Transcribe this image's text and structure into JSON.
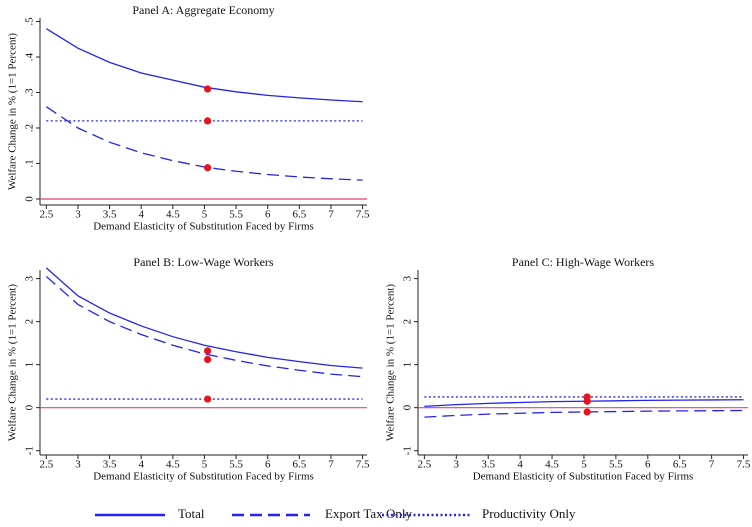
{
  "chart_data": [
    {
      "type": "line",
      "title": "Panel A: Aggregate Economy",
      "x_label": "Demand Elasticity of Substitution Faced by Firms",
      "y_label": "Welfare Change in % (1=1 Percent)",
      "x": [
        2.5,
        3,
        3.5,
        4,
        4.5,
        5,
        5.5,
        6,
        6.5,
        7,
        7.5
      ],
      "xlim": [
        2.4,
        7.57
      ],
      "xticks": [
        2.5,
        3,
        3.5,
        4,
        4.5,
        5,
        5.5,
        6,
        6.5,
        7,
        7.5
      ],
      "ylim": [
        -0.017,
        0.51
      ],
      "yticks": [
        0,
        {
          "value": 0.1,
          "label": ".1"
        },
        {
          "value": 0.2,
          "label": ".2"
        },
        {
          "value": 0.3,
          "label": ".3"
        },
        {
          "value": 0.4,
          "label": ".4"
        },
        {
          "value": 0.5,
          "label": ".5"
        }
      ],
      "hline": 0,
      "hline_color": "#e0457b",
      "highlight_x": 5.05,
      "highlight_color": "#e8141b",
      "series": [
        {
          "name": "Total",
          "color": "#2323f0",
          "line_style": "solid",
          "values": [
            0.48,
            0.425,
            0.385,
            0.355,
            0.335,
            0.315,
            0.302,
            0.292,
            0.285,
            0.279,
            0.274
          ],
          "highlight_value": 0.31
        },
        {
          "name": "Export Tax Only",
          "color": "#2323f0",
          "line_style": "dash",
          "values": [
            0.26,
            0.2,
            0.16,
            0.13,
            0.108,
            0.09,
            0.078,
            0.069,
            0.062,
            0.057,
            0.053
          ],
          "highlight_value": 0.088
        },
        {
          "name": "Productivity Only",
          "color": "#2323f0",
          "line_style": "dot",
          "values": [
            0.22,
            0.22,
            0.22,
            0.22,
            0.22,
            0.22,
            0.22,
            0.22,
            0.22,
            0.22,
            0.22
          ],
          "highlight_value": 0.22
        }
      ]
    },
    {
      "type": "line",
      "title": "Panel B: Low-Wage Workers",
      "x_label": "Demand Elasticity of Substitution Faced by Firms",
      "y_label": "Welfare Change in % (1=1 Percent)",
      "x": [
        2.5,
        3,
        3.5,
        4,
        4.5,
        5,
        5.5,
        6,
        6.5,
        7,
        7.5
      ],
      "xlim": [
        2.4,
        7.57
      ],
      "xticks": [
        2.5,
        3,
        3.5,
        4,
        4.5,
        5,
        5.5,
        6,
        6.5,
        7,
        7.5
      ],
      "ylim": [
        -1.1,
        3.2
      ],
      "yticks": [
        -1,
        0,
        1,
        2,
        3
      ],
      "hline": 0,
      "hline_color": "#e0457b",
      "highlight_x": 5.05,
      "highlight_color": "#e8141b",
      "series": [
        {
          "color": "#2323f0",
          "line_style": "solid",
          "values": [
            3.25,
            2.6,
            2.2,
            1.9,
            1.65,
            1.45,
            1.3,
            1.17,
            1.07,
            0.98,
            0.92
          ],
          "highlight_value": 1.32
        },
        {
          "color": "#2323f0",
          "line_style": "dash",
          "values": [
            3.05,
            2.4,
            2.0,
            1.7,
            1.45,
            1.25,
            1.1,
            0.97,
            0.87,
            0.78,
            0.72
          ],
          "highlight_value": 1.12
        },
        {
          "color": "#2323f0",
          "line_style": "dot",
          "values": [
            0.2,
            0.2,
            0.2,
            0.2,
            0.2,
            0.2,
            0.2,
            0.2,
            0.2,
            0.2,
            0.2
          ],
          "highlight_value": 0.2
        }
      ]
    },
    {
      "type": "line",
      "title": "Panel C: High-Wage Workers",
      "x_label": "Demand Elasticity of Substitution Faced by Firms",
      "y_label": "Welfare Change in % (1=1 Percent)",
      "x": [
        2.5,
        3,
        3.5,
        4,
        4.5,
        5,
        5.5,
        6,
        6.5,
        7,
        7.5
      ],
      "xlim": [
        2.4,
        7.57
      ],
      "xticks": [
        2.5,
        3,
        3.5,
        4,
        4.5,
        5,
        5.5,
        6,
        6.5,
        7,
        7.5
      ],
      "ylim": [
        -1.1,
        3.2
      ],
      "yticks": [
        -1,
        0,
        1,
        2,
        3
      ],
      "hline": 0,
      "hline_color": "#e0457b",
      "highlight_x": 5.05,
      "highlight_color": "#e8141b",
      "series": [
        {
          "color": "#2323f0",
          "line_style": "solid",
          "values": [
            0.03,
            0.07,
            0.1,
            0.12,
            0.14,
            0.15,
            0.16,
            0.17,
            0.175,
            0.18,
            0.185
          ],
          "highlight_value": 0.15
        },
        {
          "color": "#2323f0",
          "line_style": "dash",
          "values": [
            -0.22,
            -0.18,
            -0.15,
            -0.13,
            -0.11,
            -0.1,
            -0.09,
            -0.08,
            -0.075,
            -0.07,
            -0.065
          ],
          "highlight_value": -0.1
        },
        {
          "color": "#2323f0",
          "line_style": "dot",
          "values": [
            0.25,
            0.25,
            0.25,
            0.25,
            0.25,
            0.25,
            0.25,
            0.25,
            0.25,
            0.25,
            0.25
          ],
          "highlight_value": 0.25
        }
      ]
    }
  ]
}
